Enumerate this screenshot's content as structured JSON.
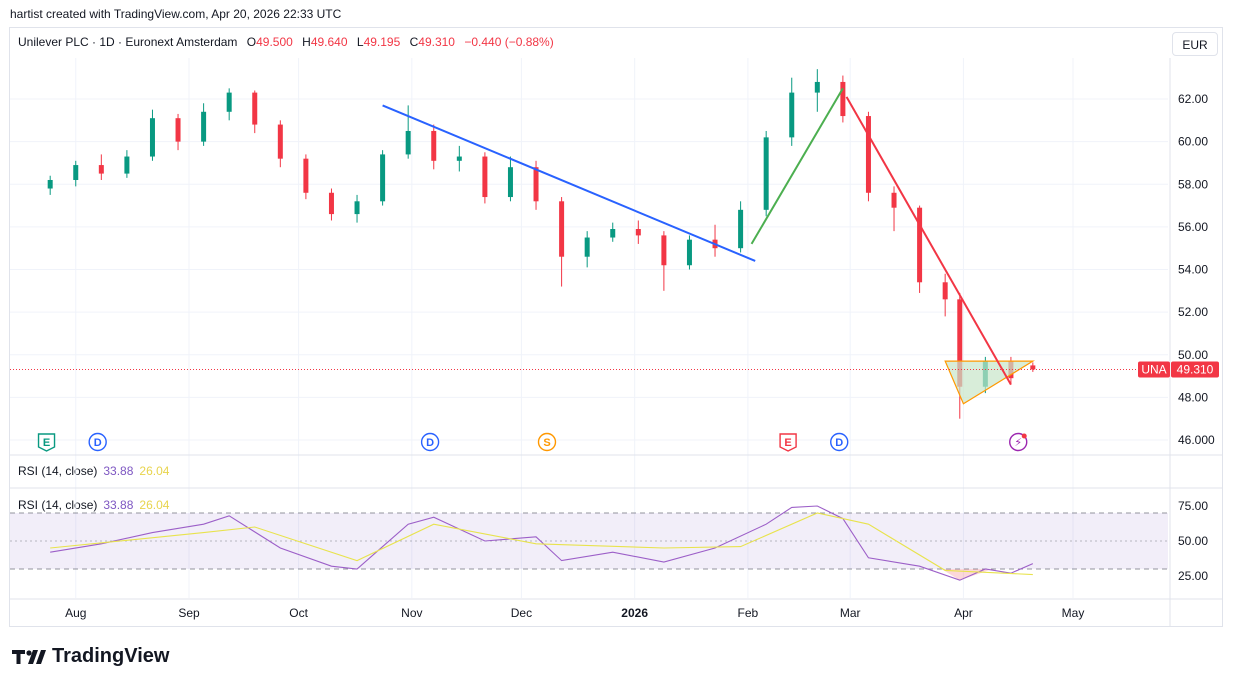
{
  "header": {
    "credit": "hartist created with TradingView.com, Apr 20, 2026 22:33 UTC"
  },
  "legend": {
    "symbol": "Unilever PLC · 1D · Euronext Amsterdam",
    "o_label": "O",
    "o": "49.500",
    "h_label": "H",
    "h": "49.640",
    "l_label": "L",
    "l": "49.195",
    "c_label": "C",
    "c": "49.310",
    "change": "−0.440 (−0.88%)"
  },
  "currency": "EUR",
  "rsi_legend": {
    "label": "RSI (14, close)",
    "rsi": "33.88",
    "ma": "26.04"
  },
  "price_tag": {
    "ticker": "UNA",
    "price": "49.310"
  },
  "x_ticks": [
    "Aug",
    "Sep",
    "Oct",
    "Nov",
    "Dec",
    "2026",
    "Feb",
    "Mar",
    "Apr",
    "May"
  ],
  "price_ticks": [
    "62.00",
    "60.00",
    "58.00",
    "56.00",
    "54.00",
    "52.00",
    "50.00",
    "48.00",
    "46.000"
  ],
  "rsi_ticks": [
    "75.00",
    "50.00",
    "25.00"
  ],
  "event_markers": [
    {
      "letter": "E",
      "kind": "earnings",
      "color": "#089981",
      "date": "2025-07-24"
    },
    {
      "letter": "D",
      "kind": "dividend",
      "color": "#2962ff",
      "date": "2025-08-07"
    },
    {
      "letter": "D",
      "kind": "dividend",
      "color": "#2962ff",
      "date": "2025-11-06"
    },
    {
      "letter": "S",
      "kind": "split",
      "color": "#ff9800",
      "date": "2025-12-08"
    },
    {
      "letter": "E",
      "kind": "earnings",
      "color": "#f23645",
      "date": "2026-02-12"
    },
    {
      "letter": "D",
      "kind": "dividend",
      "color": "#2962ff",
      "date": "2026-02-26"
    },
    {
      "letter": "⚡",
      "kind": "upcoming",
      "color": "#9c27b0",
      "date": "2026-04-16"
    }
  ],
  "colors": {
    "up": "#089981",
    "down": "#f23645",
    "rsi": "#9c5fc8",
    "rsi_ma": "#e8e34d",
    "band": "#7e57c2"
  },
  "chart_data": {
    "type": "candlestick",
    "currency": "EUR",
    "ylim": [
      45.5,
      64.5
    ],
    "candles": [
      {
        "d": "2025-07-25",
        "o": 57.8,
        "h": 58.4,
        "l": 57.5,
        "c": 58.2
      },
      {
        "d": "2025-08-01",
        "o": 58.2,
        "h": 59.1,
        "l": 57.9,
        "c": 58.9
      },
      {
        "d": "2025-08-08",
        "o": 58.9,
        "h": 59.4,
        "l": 58.2,
        "c": 58.5
      },
      {
        "d": "2025-08-15",
        "o": 58.5,
        "h": 59.6,
        "l": 58.3,
        "c": 59.3
      },
      {
        "d": "2025-08-22",
        "o": 59.3,
        "h": 61.5,
        "l": 59.1,
        "c": 61.1
      },
      {
        "d": "2025-08-29",
        "o": 61.1,
        "h": 61.3,
        "l": 59.6,
        "c": 60.0
      },
      {
        "d": "2025-09-05",
        "o": 60.0,
        "h": 61.8,
        "l": 59.8,
        "c": 61.4
      },
      {
        "d": "2025-09-12",
        "o": 61.4,
        "h": 62.5,
        "l": 61.0,
        "c": 62.3
      },
      {
        "d": "2025-09-19",
        "o": 62.3,
        "h": 62.4,
        "l": 60.4,
        "c": 60.8
      },
      {
        "d": "2025-09-26",
        "o": 60.8,
        "h": 61.0,
        "l": 58.8,
        "c": 59.2
      },
      {
        "d": "2025-10-03",
        "o": 59.2,
        "h": 59.4,
        "l": 57.3,
        "c": 57.6
      },
      {
        "d": "2025-10-10",
        "o": 57.6,
        "h": 57.8,
        "l": 56.3,
        "c": 56.6
      },
      {
        "d": "2025-10-17",
        "o": 56.6,
        "h": 57.5,
        "l": 56.2,
        "c": 57.2
      },
      {
        "d": "2025-10-24",
        "o": 57.2,
        "h": 59.6,
        "l": 57.0,
        "c": 59.4
      },
      {
        "d": "2025-10-31",
        "o": 59.4,
        "h": 61.7,
        "l": 59.2,
        "c": 60.5
      },
      {
        "d": "2025-11-07",
        "o": 60.5,
        "h": 60.8,
        "l": 58.7,
        "c": 59.1
      },
      {
        "d": "2025-11-14",
        "o": 59.1,
        "h": 59.8,
        "l": 58.6,
        "c": 59.3
      },
      {
        "d": "2025-11-21",
        "o": 59.3,
        "h": 59.5,
        "l": 57.1,
        "c": 57.4
      },
      {
        "d": "2025-11-28",
        "o": 57.4,
        "h": 59.3,
        "l": 57.2,
        "c": 58.8
      },
      {
        "d": "2025-12-05",
        "o": 58.8,
        "h": 59.1,
        "l": 56.8,
        "c": 57.2
      },
      {
        "d": "2025-12-12",
        "o": 57.2,
        "h": 57.4,
        "l": 53.2,
        "c": 54.6
      },
      {
        "d": "2025-12-19",
        "o": 54.6,
        "h": 55.8,
        "l": 54.1,
        "c": 55.5
      },
      {
        "d": "2025-12-26",
        "o": 55.5,
        "h": 56.2,
        "l": 55.3,
        "c": 55.9
      },
      {
        "d": "2026-01-02",
        "o": 55.9,
        "h": 56.3,
        "l": 55.2,
        "c": 55.6
      },
      {
        "d": "2026-01-09",
        "o": 55.6,
        "h": 55.8,
        "l": 53.0,
        "c": 54.2
      },
      {
        "d": "2026-01-16",
        "o": 54.2,
        "h": 55.6,
        "l": 54.0,
        "c": 55.4
      },
      {
        "d": "2026-01-23",
        "o": 55.4,
        "h": 56.1,
        "l": 54.6,
        "c": 55.0
      },
      {
        "d": "2026-01-30",
        "o": 55.0,
        "h": 57.2,
        "l": 54.8,
        "c": 56.8
      },
      {
        "d": "2026-02-06",
        "o": 56.8,
        "h": 60.5,
        "l": 56.5,
        "c": 60.2
      },
      {
        "d": "2026-02-13",
        "o": 60.2,
        "h": 63.0,
        "l": 59.8,
        "c": 62.3
      },
      {
        "d": "2026-02-20",
        "o": 62.3,
        "h": 63.4,
        "l": 61.4,
        "c": 62.8
      },
      {
        "d": "2026-02-27",
        "o": 62.8,
        "h": 63.1,
        "l": 60.9,
        "c": 61.2
      },
      {
        "d": "2026-03-06",
        "o": 61.2,
        "h": 61.4,
        "l": 57.2,
        "c": 57.6
      },
      {
        "d": "2026-03-13",
        "o": 57.6,
        "h": 57.9,
        "l": 55.8,
        "c": 56.9
      },
      {
        "d": "2026-03-20",
        "o": 56.9,
        "h": 57.0,
        "l": 52.9,
        "c": 53.4
      },
      {
        "d": "2026-03-27",
        "o": 53.4,
        "h": 53.8,
        "l": 51.8,
        "c": 52.6
      },
      {
        "d": "2026-03-31",
        "o": 52.6,
        "h": 52.9,
        "l": 47.0,
        "c": 48.5
      },
      {
        "d": "2026-04-07",
        "o": 48.5,
        "h": 49.9,
        "l": 48.2,
        "c": 49.7
      },
      {
        "d": "2026-04-14",
        "o": 49.7,
        "h": 49.9,
        "l": 48.6,
        "c": 48.9
      },
      {
        "d": "2026-04-20",
        "o": 49.5,
        "h": 49.64,
        "l": 49.195,
        "c": 49.31
      }
    ],
    "trendlines": [
      {
        "color": "#2962ff",
        "from": {
          "d": "2025-10-24",
          "p": 61.7
        },
        "to": {
          "d": "2026-02-03",
          "p": 54.4
        }
      },
      {
        "color": "#4caf50",
        "from": {
          "d": "2026-02-02",
          "p": 55.2
        },
        "to": {
          "d": "2026-02-27",
          "p": 62.5
        }
      },
      {
        "color": "#f23645",
        "from": {
          "d": "2026-02-28",
          "p": 62.1
        },
        "to": {
          "d": "2026-04-14",
          "p": 48.6
        }
      }
    ],
    "triangle": {
      "color": "#ff9800",
      "points": [
        {
          "d": "2026-03-27",
          "p": 49.7
        },
        {
          "d": "2026-04-20",
          "p": 49.7
        },
        {
          "d": "2026-04-01",
          "p": 47.7
        }
      ]
    },
    "last_price": 49.31,
    "rsi": {
      "period": 14,
      "ylim": [
        10,
        90
      ],
      "bands": [
        30,
        50,
        70
      ],
      "values": [
        {
          "d": "2025-07-25",
          "v": 42
        },
        {
          "d": "2025-08-08",
          "v": 48
        },
        {
          "d": "2025-08-22",
          "v": 56
        },
        {
          "d": "2025-09-05",
          "v": 62
        },
        {
          "d": "2025-09-12",
          "v": 68
        },
        {
          "d": "2025-09-26",
          "v": 45
        },
        {
          "d": "2025-10-10",
          "v": 32
        },
        {
          "d": "2025-10-17",
          "v": 30
        },
        {
          "d": "2025-10-31",
          "v": 62
        },
        {
          "d": "2025-11-07",
          "v": 67
        },
        {
          "d": "2025-11-21",
          "v": 50
        },
        {
          "d": "2025-12-05",
          "v": 53
        },
        {
          "d": "2025-12-12",
          "v": 36
        },
        {
          "d": "2025-12-26",
          "v": 42
        },
        {
          "d": "2026-01-09",
          "v": 35
        },
        {
          "d": "2026-01-23",
          "v": 45
        },
        {
          "d": "2026-02-06",
          "v": 62
        },
        {
          "d": "2026-02-13",
          "v": 74
        },
        {
          "d": "2026-02-20",
          "v": 75
        },
        {
          "d": "2026-02-27",
          "v": 66
        },
        {
          "d": "2026-03-06",
          "v": 38
        },
        {
          "d": "2026-03-20",
          "v": 32
        },
        {
          "d": "2026-03-31",
          "v": 22
        },
        {
          "d": "2026-04-07",
          "v": 30
        },
        {
          "d": "2026-04-14",
          "v": 27
        },
        {
          "d": "2026-04-20",
          "v": 33.88
        }
      ],
      "ma": [
        {
          "d": "2025-07-25",
          "v": 45
        },
        {
          "d": "2025-09-05",
          "v": 56
        },
        {
          "d": "2025-09-19",
          "v": 60
        },
        {
          "d": "2025-10-17",
          "v": 36
        },
        {
          "d": "2025-11-07",
          "v": 62
        },
        {
          "d": "2025-12-05",
          "v": 48
        },
        {
          "d": "2026-01-09",
          "v": 45
        },
        {
          "d": "2026-01-30",
          "v": 46
        },
        {
          "d": "2026-02-20",
          "v": 70
        },
        {
          "d": "2026-03-06",
          "v": 62
        },
        {
          "d": "2026-03-27",
          "v": 29
        },
        {
          "d": "2026-04-20",
          "v": 26.04
        }
      ]
    }
  }
}
